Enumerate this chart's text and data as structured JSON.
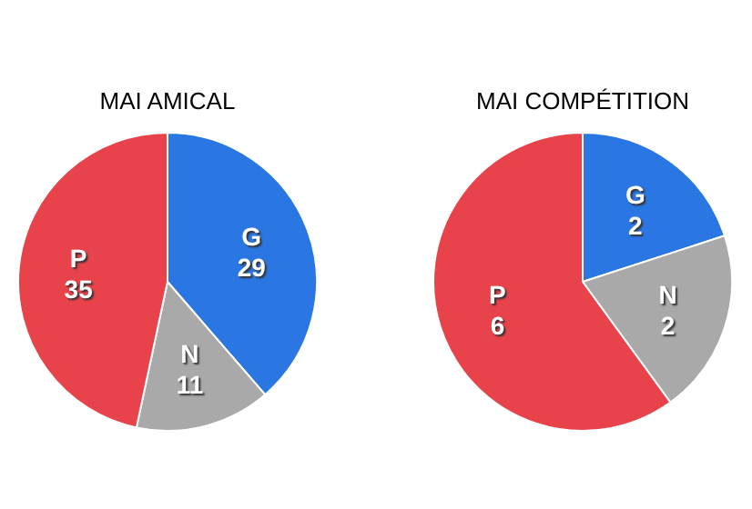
{
  "chart_data": [
    {
      "type": "pie",
      "title": "MAI AMICAL",
      "categories": [
        "G",
        "N",
        "P"
      ],
      "values": [
        29,
        11,
        35
      ],
      "colors": [
        "#2a77e3",
        "#a9a9a9",
        "#e8434a"
      ],
      "data_labels": true
    },
    {
      "type": "pie",
      "title": "MAI COMPÉTITION",
      "categories": [
        "G",
        "N",
        "P"
      ],
      "values": [
        2,
        2,
        6
      ],
      "colors": [
        "#2a77e3",
        "#a9a9a9",
        "#e8434a"
      ],
      "data_labels": true
    }
  ]
}
